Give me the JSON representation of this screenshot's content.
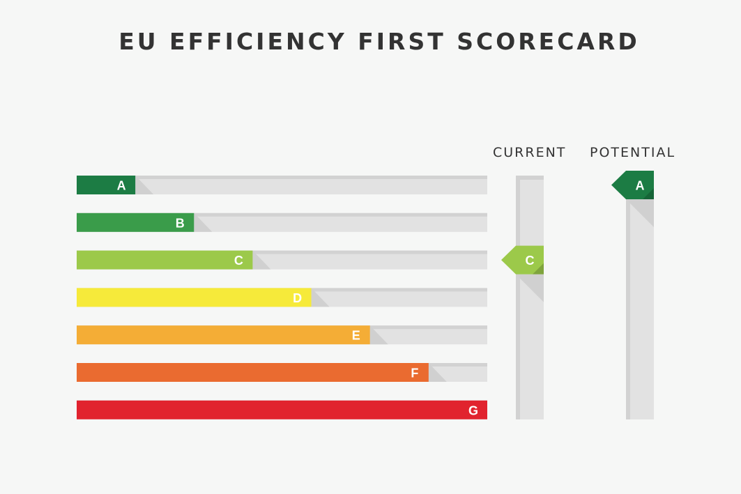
{
  "title": "EU EFFICIENCY FIRST SCORECARD",
  "columns": {
    "current": "CURRENT",
    "potential": "POTENTIAL"
  },
  "chart_data": {
    "type": "bar",
    "categories": [
      "A",
      "B",
      "C",
      "D",
      "E",
      "F",
      "G"
    ],
    "values": [
      1,
      2,
      3,
      4,
      5,
      6,
      7
    ],
    "colors": [
      "#1c7c44",
      "#3a9c4a",
      "#9cc94a",
      "#f6ea3a",
      "#f4ad36",
      "#ea6b30",
      "#e1232e"
    ],
    "current_rating": "C",
    "potential_rating": "A"
  }
}
